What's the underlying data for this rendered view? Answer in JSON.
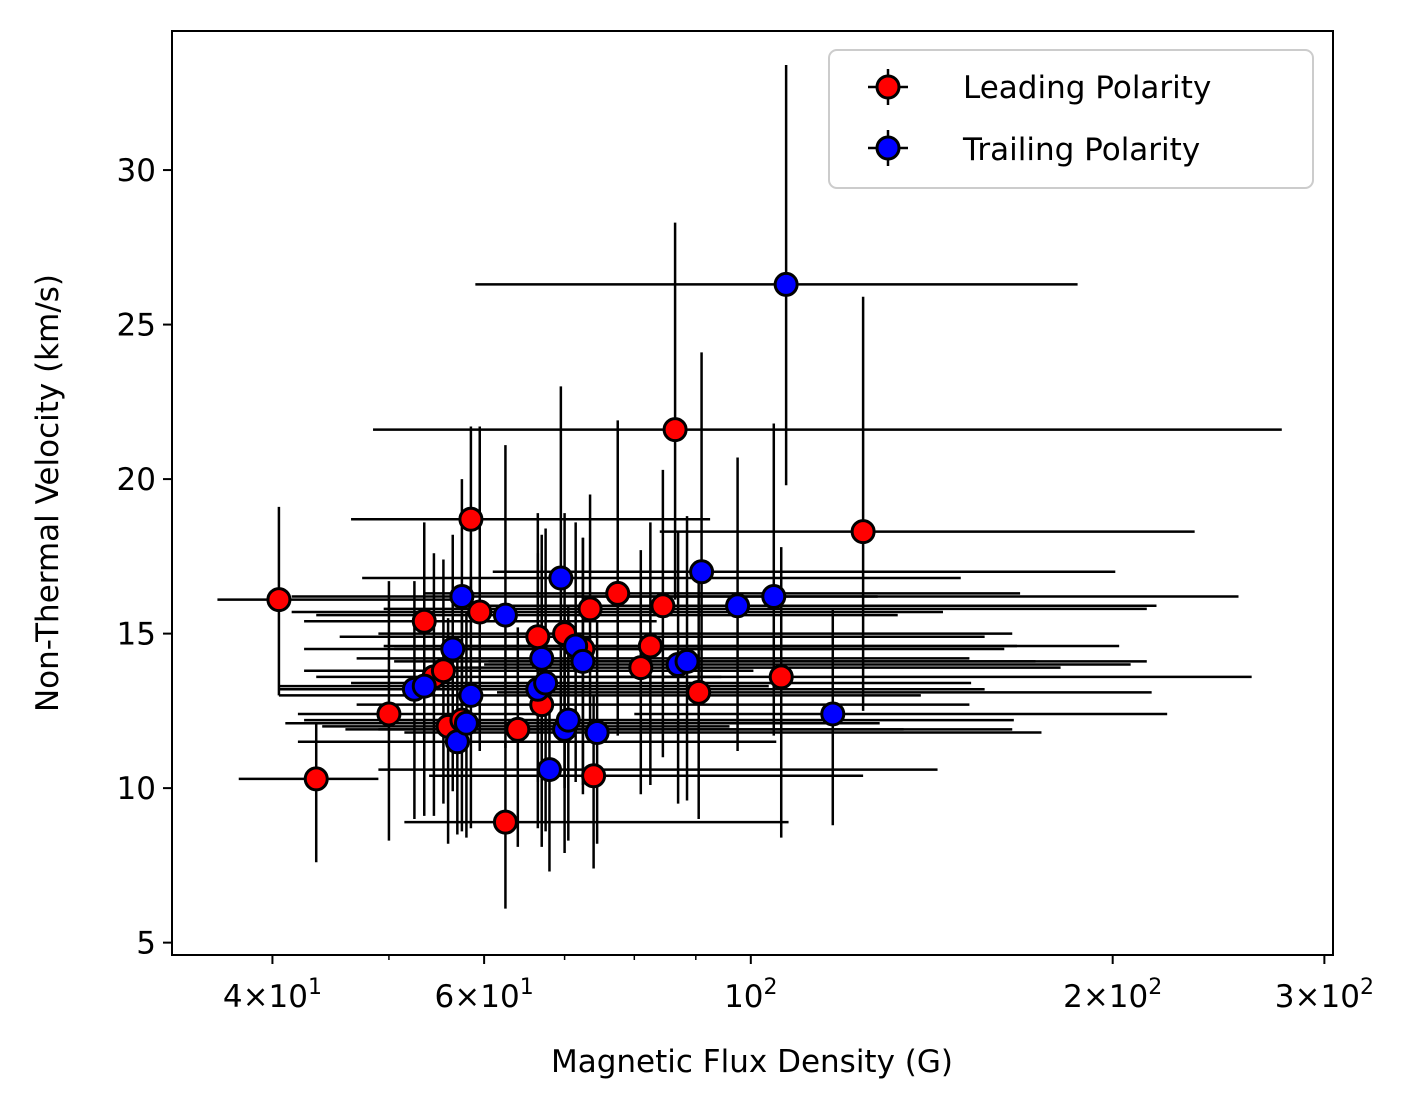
{
  "chart_data": {
    "type": "scatter",
    "title": "",
    "xlabel": "Magnetic Flux Density (G)",
    "ylabel": "Non-Thermal Velocity (km/s)",
    "xscale": "log",
    "xlim": [
      33,
      305
    ],
    "ylim": [
      4.6,
      34.5
    ],
    "x_ticks": [
      {
        "value": 40,
        "mant": "4",
        "exp": "1"
      },
      {
        "value": 60,
        "mant": "6",
        "exp": "1"
      },
      {
        "value": 100,
        "mant": "",
        "exp": "2"
      },
      {
        "value": 200,
        "mant": "2",
        "exp": "2"
      },
      {
        "value": 300,
        "mant": "3",
        "exp": "2"
      }
    ],
    "y_ticks": [
      5,
      10,
      15,
      20,
      25,
      30
    ],
    "legend": {
      "position": "top-right"
    },
    "series": [
      {
        "name": "Leading Polarity",
        "color": "#ff0000",
        "edge_color": "#000000",
        "points": [
          {
            "x": 40.5,
            "y": 16.1,
            "xerr": [
              4.5,
              18
            ],
            "yerr": [
              3.1,
              3.0
            ]
          },
          {
            "x": 43.5,
            "y": 10.3,
            "xerr": [
              6,
              5.5
            ],
            "yerr": [
              2.7,
              1.8
            ]
          },
          {
            "x": 50,
            "y": 12.4,
            "xerr": [
              8,
              18
            ],
            "yerr": [
              4.1,
              4.3
            ]
          },
          {
            "x": 53.5,
            "y": 15.4,
            "xerr": [
              11,
              30
            ],
            "yerr": [
              3.9,
              3.2
            ]
          },
          {
            "x": 54.5,
            "y": 13.6,
            "xerr": [
              11,
              40
            ],
            "yerr": [
              4.5,
              4.0
            ]
          },
          {
            "x": 55.5,
            "y": 13.8,
            "xerr": [
              13,
              45
            ],
            "yerr": [
              4.3,
              3.6
            ]
          },
          {
            "x": 56,
            "y": 12.0,
            "xerr": [
              12,
              40
            ],
            "yerr": [
              3.8,
              3.5
            ]
          },
          {
            "x": 57.5,
            "y": 12.2,
            "xerr": [
              15,
              60
            ],
            "yerr": [
              3.6,
              3.5
            ]
          },
          {
            "x": 58.5,
            "y": 18.7,
            "xerr": [
              12,
              34
            ],
            "yerr": [
              2.7,
              3.0
            ]
          },
          {
            "x": 59.5,
            "y": 15.7,
            "xerr": [
              18,
              85
            ],
            "yerr": [
              4.5,
              6.0
            ]
          },
          {
            "x": 62.5,
            "y": 8.9,
            "xerr": [
              11,
              45
            ],
            "yerr": [
              2.8,
              2.6
            ]
          },
          {
            "x": 64,
            "y": 11.9,
            "xerr": [
              18,
              70
            ],
            "yerr": [
              3.8,
              3.3
            ]
          },
          {
            "x": 66.5,
            "y": 14.9,
            "xerr": [
              21,
              90
            ],
            "yerr": [
              4.7,
              4.0
            ]
          },
          {
            "x": 67,
            "y": 12.7,
            "xerr": [
              20,
              85
            ],
            "yerr": [
              4.6,
              4.5
            ]
          },
          {
            "x": 70,
            "y": 15.0,
            "xerr": [
              21,
              95
            ],
            "yerr": [
              5.0,
              3.9
            ]
          },
          {
            "x": 72.5,
            "y": 14.5,
            "xerr": [
              22,
              90
            ],
            "yerr": [
              4.4,
              3.6
            ]
          },
          {
            "x": 73.5,
            "y": 15.8,
            "xerr": [
              24,
              140
            ],
            "yerr": [
              3.9,
              3.7
            ]
          },
          {
            "x": 74,
            "y": 10.4,
            "xerr": [
              20,
              50
            ],
            "yerr": [
              3.0,
              2.6
            ]
          },
          {
            "x": 77.5,
            "y": 16.3,
            "xerr": [
              24,
              90
            ],
            "yerr": [
              4.6,
              5.6
            ]
          },
          {
            "x": 81,
            "y": 13.9,
            "xerr": [
              25,
              100
            ],
            "yerr": [
              4.1,
              3.8
            ]
          },
          {
            "x": 82.5,
            "y": 14.6,
            "xerr": [
              26,
              120
            ],
            "yerr": [
              4.5,
              4.0
            ]
          },
          {
            "x": 84.5,
            "y": 15.9,
            "xerr": [
              27,
              110
            ],
            "yerr": [
              4.9,
              4.4
            ]
          },
          {
            "x": 86.5,
            "y": 21.6,
            "xerr": [
              38,
              190
            ],
            "yerr": [
              5.5,
              6.7
            ]
          },
          {
            "x": 90.5,
            "y": 13.1,
            "xerr": [
              29,
              125
            ],
            "yerr": [
              4.1,
              3.8
            ]
          },
          {
            "x": 106,
            "y": 13.6,
            "xerr": [
              32,
              155
            ],
            "yerr": [
              5.2,
              4.2
            ]
          },
          {
            "x": 124,
            "y": 18.3,
            "xerr": [
              40,
              110
            ],
            "yerr": [
              5.8,
              7.6
            ]
          }
        ]
      },
      {
        "name": "Trailing Polarity",
        "color": "#0000ff",
        "edge_color": "#000000",
        "points": [
          {
            "x": 52.5,
            "y": 13.2,
            "xerr": [
              12,
              45
            ],
            "yerr": [
              4.2,
              3.5
            ]
          },
          {
            "x": 53.5,
            "y": 13.3,
            "xerr": [
              13,
              50
            ],
            "yerr": [
              4.2,
              3.7
            ]
          },
          {
            "x": 56.5,
            "y": 14.5,
            "xerr": [
              14,
              60
            ],
            "yerr": [
              4.6,
              3.7
            ]
          },
          {
            "x": 57,
            "y": 11.5,
            "xerr": [
              15,
              48
            ],
            "yerr": [
              3.0,
              3.3
            ]
          },
          {
            "x": 57.5,
            "y": 16.2,
            "xerr": [
              16,
              70
            ],
            "yerr": [
              4.4,
              3.8
            ]
          },
          {
            "x": 58,
            "y": 12.1,
            "xerr": [
              17,
              70
            ],
            "yerr": [
              3.7,
              3.6
            ]
          },
          {
            "x": 58.5,
            "y": 13.0,
            "xerr": [
              18,
              80
            ],
            "yerr": [
              4.3,
              3.8
            ]
          },
          {
            "x": 62.5,
            "y": 15.6,
            "xerr": [
              19,
              70
            ],
            "yerr": [
              4.3,
              5.5
            ]
          },
          {
            "x": 66.5,
            "y": 13.2,
            "xerr": [
              20,
              90
            ],
            "yerr": [
              4.5,
              4.4
            ]
          },
          {
            "x": 67,
            "y": 14.2,
            "xerr": [
              20,
              85
            ],
            "yerr": [
              4.6,
              4.0
            ]
          },
          {
            "x": 67.5,
            "y": 13.4,
            "xerr": [
              21,
              85
            ],
            "yerr": [
              4.8,
              5.0
            ]
          },
          {
            "x": 68,
            "y": 10.6,
            "xerr": [
              19,
              75
            ],
            "yerr": [
              3.3,
              3.2
            ]
          },
          {
            "x": 69.5,
            "y": 16.8,
            "xerr": [
              22,
              80
            ],
            "yerr": [
              4.5,
              6.2
            ]
          },
          {
            "x": 70,
            "y": 11.9,
            "xerr": [
              21,
              95
            ],
            "yerr": [
              4.0,
              3.6
            ]
          },
          {
            "x": 70.5,
            "y": 12.2,
            "xerr": [
              21,
              95
            ],
            "yerr": [
              3.9,
              3.7
            ]
          },
          {
            "x": 71.5,
            "y": 14.6,
            "xerr": [
              22,
              95
            ],
            "yerr": [
              4.4,
              4.0
            ]
          },
          {
            "x": 72.5,
            "y": 14.1,
            "xerr": [
              22,
              100
            ],
            "yerr": [
              4.3,
              4.0
            ]
          },
          {
            "x": 74.5,
            "y": 11.8,
            "xerr": [
              23,
              100
            ],
            "yerr": [
              3.6,
              3.6
            ]
          },
          {
            "x": 87,
            "y": 14.0,
            "xerr": [
              27,
              120
            ],
            "yerr": [
              4.5,
              4.3
            ]
          },
          {
            "x": 88.5,
            "y": 14.1,
            "xerr": [
              28,
              125
            ],
            "yerr": [
              4.5,
              4.7
            ]
          },
          {
            "x": 91,
            "y": 17.0,
            "xerr": [
              30,
              110
            ],
            "yerr": [
              4.3,
              7.1
            ]
          },
          {
            "x": 97.5,
            "y": 15.9,
            "xerr": [
              30,
              120
            ],
            "yerr": [
              4.7,
              4.8
            ]
          },
          {
            "x": 104.5,
            "y": 16.2,
            "xerr": [
              33,
              150
            ],
            "yerr": [
              4.5,
              5.6
            ]
          },
          {
            "x": 107,
            "y": 26.3,
            "xerr": [
              48,
              80
            ],
            "yerr": [
              6.5,
              7.1
            ]
          },
          {
            "x": 117,
            "y": 12.4,
            "xerr": [
              37,
              105
            ],
            "yerr": [
              3.6,
              3.4
            ]
          }
        ]
      }
    ]
  }
}
